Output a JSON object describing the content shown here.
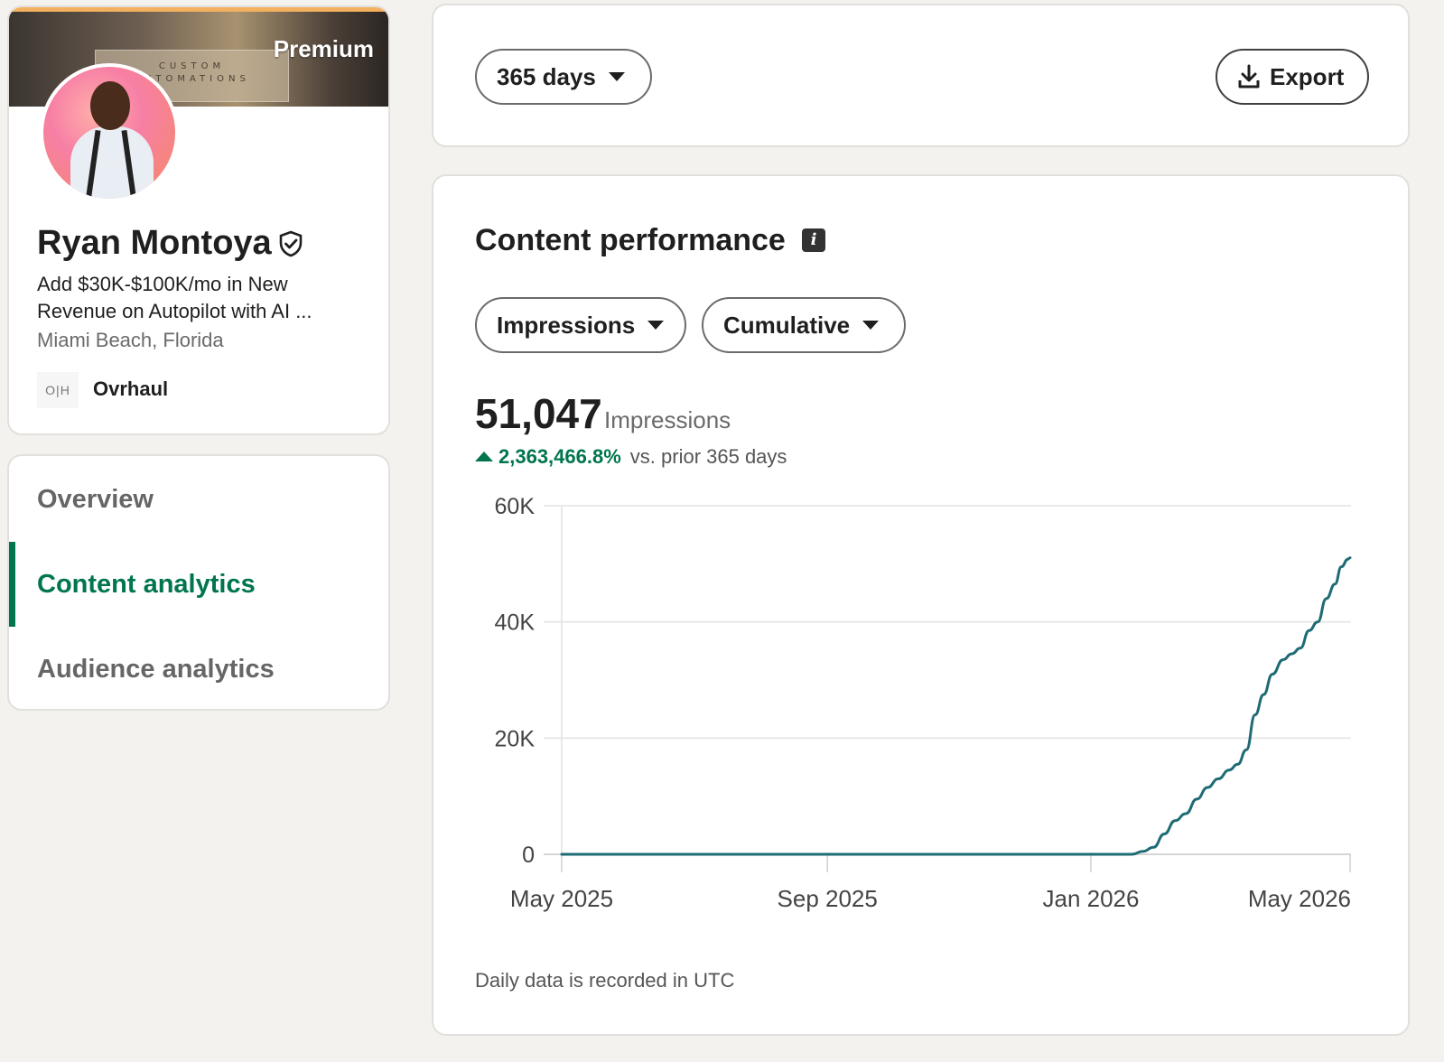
{
  "profile": {
    "banner_badge": "Premium",
    "banner_sign_line1": "CUSTOM",
    "banner_sign_line2": "AUTOMATIONS",
    "name": "Ryan Montoya",
    "headline": "Add $30K-$100K/mo in New Revenue on Autopilot with AI ...",
    "location": "Miami Beach, Florida",
    "company_logo_text": "O|H",
    "company_name": "Ovrhaul"
  },
  "nav": {
    "items": [
      {
        "label": "Overview",
        "active": false
      },
      {
        "label": "Content analytics",
        "active": true
      },
      {
        "label": "Audience analytics",
        "active": false
      }
    ]
  },
  "toolbar": {
    "range_label": "365 days",
    "export_label": "Export"
  },
  "content": {
    "title": "Content performance",
    "info_icon": "info-icon",
    "metric_dropdown": "Impressions",
    "mode_dropdown": "Cumulative",
    "total_value": "51,047",
    "total_label": "Impressions",
    "change_value": "2,363,466.8%",
    "change_suffix": "vs. prior 365 days",
    "footnote": "Daily data is recorded in UTC"
  },
  "colors": {
    "accent_green": "#01754f",
    "line": "#1e6b74",
    "grid": "#e2e2e2"
  },
  "chart_data": {
    "type": "line",
    "title": "",
    "xlabel": "",
    "ylabel": "",
    "ylim": [
      0,
      60000
    ],
    "yticks": [
      0,
      20000,
      40000,
      60000
    ],
    "ytick_labels": [
      "0",
      "20K",
      "40K",
      "60K"
    ],
    "xticks": [
      "2025-05-01",
      "2025-09-01",
      "2026-01-01",
      "2026-05-01"
    ],
    "xtick_labels": [
      "May 2025",
      "Sep 2025",
      "Jan 2026",
      "May 2026"
    ],
    "xlim": [
      "2025-05-01",
      "2026-05-01"
    ],
    "grid": true,
    "series": [
      {
        "name": "",
        "points": [
          [
            "2025-05-01",
            0
          ],
          [
            "2025-07-01",
            0
          ],
          [
            "2025-09-01",
            0
          ],
          [
            "2025-11-01",
            0
          ],
          [
            "2026-01-01",
            0
          ],
          [
            "2026-01-20",
            0
          ],
          [
            "2026-01-25",
            500
          ],
          [
            "2026-01-30",
            1200
          ],
          [
            "2026-02-04",
            3500
          ],
          [
            "2026-02-09",
            5800
          ],
          [
            "2026-02-14",
            7000
          ],
          [
            "2026-02-19",
            9500
          ],
          [
            "2026-02-24",
            11500
          ],
          [
            "2026-03-01",
            13000
          ],
          [
            "2026-03-06",
            14500
          ],
          [
            "2026-03-10",
            15500
          ],
          [
            "2026-03-14",
            18000
          ],
          [
            "2026-03-18",
            24000
          ],
          [
            "2026-03-22",
            27500
          ],
          [
            "2026-03-26",
            31000
          ],
          [
            "2026-03-31",
            33500
          ],
          [
            "2026-04-04",
            34500
          ],
          [
            "2026-04-08",
            35500
          ],
          [
            "2026-04-12",
            38500
          ],
          [
            "2026-04-16",
            40000
          ],
          [
            "2026-04-20",
            44000
          ],
          [
            "2026-04-24",
            46500
          ],
          [
            "2026-04-27",
            49500
          ],
          [
            "2026-04-30",
            50800
          ],
          [
            "2026-05-01",
            51047
          ]
        ]
      }
    ]
  }
}
